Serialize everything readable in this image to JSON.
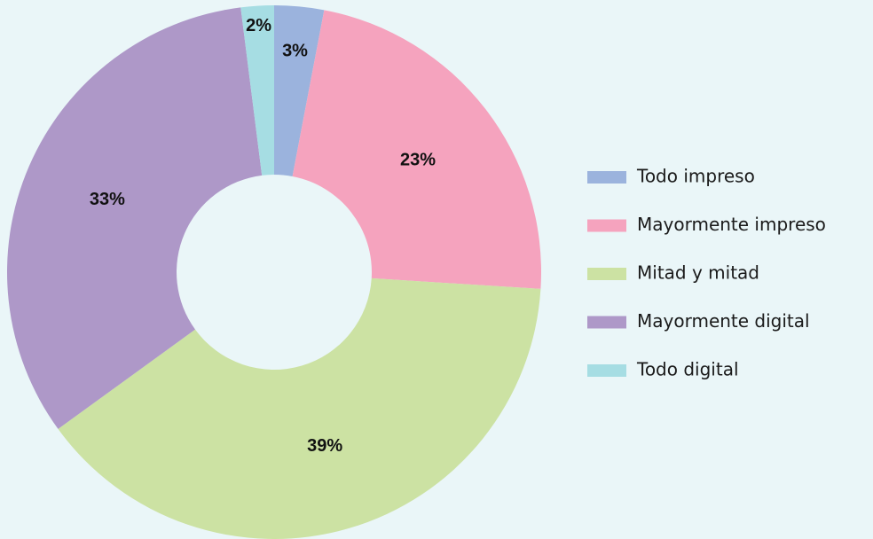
{
  "chart_data": {
    "type": "pie",
    "donut": true,
    "categories": [
      "Todo impreso",
      "Mayormente impreso",
      "Mitad y mitad",
      "Mayormente digital",
      "Todo digital"
    ],
    "values": [
      3,
      23,
      39,
      33,
      2
    ],
    "value_labels": [
      "3%",
      "23%",
      "39%",
      "33%",
      "2%"
    ],
    "colors": [
      "#9bb3dd",
      "#f5a3be",
      "#cce2a3",
      "#ae98c8",
      "#a6dde3"
    ],
    "legend": "right"
  }
}
